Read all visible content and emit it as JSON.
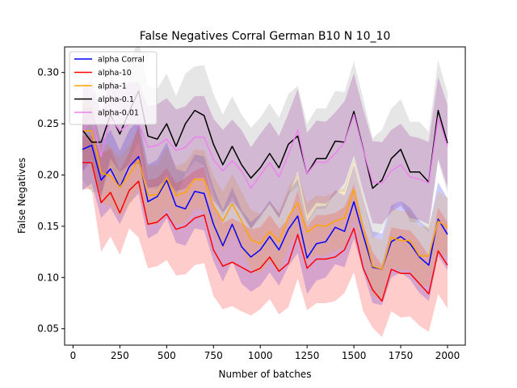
{
  "chart_data": {
    "type": "line",
    "title": "False Negatives Corral German B10 N 10_10",
    "xlabel": "Number of batches",
    "ylabel": "False Negatives",
    "xlim": [
      -45,
      2095
    ],
    "ylim": [
      0.034,
      0.325
    ],
    "x_ticks": [
      0,
      250,
      500,
      750,
      1000,
      1250,
      1500,
      1750,
      2000
    ],
    "y_ticks": [
      0.05,
      0.1,
      0.15,
      0.2,
      0.25,
      0.3
    ],
    "y_tick_labels": [
      "0.05",
      "0.10",
      "0.15",
      "0.20",
      "0.25",
      "0.30"
    ],
    "grid": false,
    "legend_position": "top-left",
    "x": [
      50,
      100,
      150,
      200,
      250,
      300,
      350,
      400,
      450,
      500,
      550,
      600,
      650,
      700,
      750,
      800,
      850,
      900,
      950,
      1000,
      1050,
      1100,
      1150,
      1200,
      1250,
      1300,
      1350,
      1400,
      1450,
      1500,
      1550,
      1600,
      1650,
      1700,
      1750,
      1800,
      1850,
      1900,
      1950,
      2000
    ],
    "series": [
      {
        "name": "alpha Corral",
        "color": "#0000ff",
        "band_color": "#0000ff",
        "values": [
          0.225,
          0.229,
          0.195,
          0.206,
          0.188,
          0.208,
          0.218,
          0.174,
          0.179,
          0.195,
          0.17,
          0.167,
          0.184,
          0.182,
          0.152,
          0.131,
          0.152,
          0.13,
          0.12,
          0.127,
          0.14,
          0.127,
          0.147,
          0.16,
          0.119,
          0.133,
          0.135,
          0.149,
          0.145,
          0.174,
          0.141,
          0.11,
          0.108,
          0.135,
          0.14,
          0.133,
          0.12,
          0.112,
          0.157,
          0.142
        ],
        "lower": [
          0.185,
          0.192,
          0.158,
          0.168,
          0.152,
          0.172,
          0.182,
          0.138,
          0.143,
          0.158,
          0.134,
          0.131,
          0.148,
          0.146,
          0.116,
          0.096,
          0.116,
          0.094,
          0.086,
          0.092,
          0.105,
          0.092,
          0.111,
          0.124,
          0.084,
          0.097,
          0.1,
          0.113,
          0.11,
          0.138,
          0.106,
          0.075,
          0.073,
          0.1,
          0.105,
          0.098,
          0.085,
          0.077,
          0.121,
          0.107
        ],
        "upper": [
          0.265,
          0.266,
          0.232,
          0.244,
          0.224,
          0.244,
          0.254,
          0.21,
          0.215,
          0.232,
          0.206,
          0.203,
          0.22,
          0.218,
          0.188,
          0.166,
          0.188,
          0.166,
          0.154,
          0.162,
          0.175,
          0.162,
          0.183,
          0.196,
          0.154,
          0.169,
          0.17,
          0.185,
          0.18,
          0.21,
          0.176,
          0.145,
          0.143,
          0.17,
          0.175,
          0.168,
          0.155,
          0.147,
          0.193,
          0.177
        ]
      },
      {
        "name": "alpha-10",
        "color": "#ff0000",
        "band_color": "#ff0000",
        "values": [
          0.212,
          0.212,
          0.173,
          0.183,
          0.163,
          0.185,
          0.194,
          0.152,
          0.154,
          0.162,
          0.147,
          0.15,
          0.158,
          0.161,
          0.127,
          0.111,
          0.115,
          0.11,
          0.105,
          0.109,
          0.12,
          0.106,
          0.114,
          0.142,
          0.109,
          0.118,
          0.118,
          0.12,
          0.127,
          0.148,
          0.109,
          0.088,
          0.077,
          0.108,
          0.104,
          0.104,
          0.094,
          0.084,
          0.126,
          0.112
        ],
        "lower": [
          0.186,
          0.186,
          0.125,
          0.14,
          0.122,
          0.148,
          0.139,
          0.109,
          0.111,
          0.117,
          0.102,
          0.103,
          0.112,
          0.114,
          0.082,
          0.069,
          0.072,
          0.067,
          0.063,
          0.069,
          0.079,
          0.064,
          0.071,
          0.099,
          0.068,
          0.075,
          0.075,
          0.077,
          0.085,
          0.105,
          0.067,
          0.051,
          0.042,
          0.067,
          0.061,
          0.062,
          0.053,
          0.047,
          0.084,
          0.07
        ],
        "upper": [
          0.238,
          0.238,
          0.221,
          0.226,
          0.204,
          0.222,
          0.249,
          0.195,
          0.197,
          0.207,
          0.192,
          0.197,
          0.204,
          0.208,
          0.172,
          0.153,
          0.158,
          0.153,
          0.147,
          0.149,
          0.161,
          0.148,
          0.157,
          0.185,
          0.15,
          0.161,
          0.161,
          0.163,
          0.169,
          0.191,
          0.151,
          0.125,
          0.112,
          0.149,
          0.147,
          0.146,
          0.135,
          0.121,
          0.168,
          0.154
        ]
      },
      {
        "name": "alpha-1",
        "color": "#ffa500",
        "band_color": "#ffa500",
        "values": [
          0.243,
          0.243,
          0.202,
          0.199,
          0.188,
          0.2,
          0.215,
          0.18,
          0.181,
          0.197,
          0.18,
          0.183,
          0.196,
          0.195,
          0.17,
          0.155,
          0.172,
          0.155,
          0.137,
          0.133,
          0.145,
          0.135,
          0.159,
          0.173,
          0.144,
          0.151,
          0.15,
          0.155,
          0.158,
          0.186,
          0.149,
          0.111,
          0.108,
          0.139,
          0.136,
          0.136,
          0.121,
          0.121,
          0.155,
          0.149
        ],
        "lower": [
          0.214,
          0.214,
          0.173,
          0.17,
          0.159,
          0.171,
          0.186,
          0.151,
          0.152,
          0.168,
          0.151,
          0.154,
          0.167,
          0.166,
          0.141,
          0.126,
          0.143,
          0.126,
          0.108,
          0.104,
          0.116,
          0.106,
          0.13,
          0.144,
          0.115,
          0.122,
          0.121,
          0.126,
          0.129,
          0.157,
          0.12,
          0.082,
          0.079,
          0.11,
          0.107,
          0.107,
          0.092,
          0.092,
          0.126,
          0.12
        ],
        "upper": [
          0.272,
          0.272,
          0.231,
          0.228,
          0.217,
          0.229,
          0.244,
          0.209,
          0.21,
          0.226,
          0.209,
          0.212,
          0.225,
          0.224,
          0.199,
          0.184,
          0.201,
          0.184,
          0.166,
          0.162,
          0.174,
          0.164,
          0.188,
          0.202,
          0.173,
          0.18,
          0.179,
          0.184,
          0.187,
          0.215,
          0.178,
          0.14,
          0.137,
          0.168,
          0.165,
          0.165,
          0.15,
          0.15,
          0.184,
          0.178
        ]
      },
      {
        "name": "alpha-0.1",
        "color": "#000000",
        "band_color": "#808080",
        "values": [
          0.244,
          0.232,
          0.232,
          0.259,
          0.24,
          0.262,
          0.282,
          0.238,
          0.235,
          0.25,
          0.228,
          0.25,
          0.263,
          0.258,
          0.23,
          0.21,
          0.228,
          0.21,
          0.197,
          0.207,
          0.221,
          0.207,
          0.23,
          0.238,
          0.201,
          0.216,
          0.216,
          0.233,
          0.232,
          0.262,
          0.225,
          0.187,
          0.195,
          0.216,
          0.225,
          0.203,
          0.203,
          0.193,
          0.263,
          0.231
        ],
        "lower": [
          0.195,
          0.183,
          0.183,
          0.21,
          0.191,
          0.213,
          0.233,
          0.189,
          0.186,
          0.201,
          0.179,
          0.201,
          0.214,
          0.209,
          0.181,
          0.161,
          0.179,
          0.161,
          0.148,
          0.158,
          0.172,
          0.158,
          0.181,
          0.189,
          0.152,
          0.167,
          0.167,
          0.184,
          0.183,
          0.213,
          0.176,
          0.138,
          0.146,
          0.167,
          0.176,
          0.154,
          0.154,
          0.144,
          0.214,
          0.182
        ],
        "upper": [
          0.293,
          0.281,
          0.281,
          0.308,
          0.289,
          0.311,
          0.331,
          0.287,
          0.284,
          0.299,
          0.277,
          0.299,
          0.306,
          0.307,
          0.279,
          0.259,
          0.277,
          0.259,
          0.246,
          0.256,
          0.27,
          0.256,
          0.279,
          0.287,
          0.25,
          0.265,
          0.265,
          0.282,
          0.281,
          0.311,
          0.274,
          0.236,
          0.244,
          0.265,
          0.274,
          0.252,
          0.252,
          0.242,
          0.312,
          0.28
        ]
      },
      {
        "name": "alpha-0.01",
        "color": "#ee82ee",
        "band_color": "#800080",
        "values": [
          0.243,
          0.255,
          0.218,
          0.256,
          0.243,
          0.25,
          0.251,
          0.227,
          0.229,
          0.235,
          0.224,
          0.227,
          0.237,
          0.237,
          0.215,
          0.204,
          0.214,
          0.204,
          0.187,
          0.2,
          0.212,
          0.198,
          0.22,
          0.244,
          0.201,
          0.213,
          0.212,
          0.221,
          0.232,
          0.259,
          0.224,
          0.193,
          0.192,
          0.204,
          0.21,
          0.198,
          0.196,
          0.192,
          0.256,
          0.228
        ],
        "lower": [
          0.203,
          0.215,
          0.178,
          0.216,
          0.203,
          0.21,
          0.211,
          0.187,
          0.189,
          0.195,
          0.184,
          0.187,
          0.197,
          0.197,
          0.175,
          0.164,
          0.174,
          0.164,
          0.147,
          0.16,
          0.172,
          0.158,
          0.18,
          0.204,
          0.161,
          0.173,
          0.172,
          0.181,
          0.192,
          0.219,
          0.184,
          0.153,
          0.152,
          0.164,
          0.17,
          0.158,
          0.156,
          0.152,
          0.216,
          0.188
        ],
        "upper": [
          0.283,
          0.295,
          0.258,
          0.296,
          0.283,
          0.29,
          0.291,
          0.267,
          0.269,
          0.275,
          0.264,
          0.267,
          0.277,
          0.277,
          0.255,
          0.244,
          0.254,
          0.244,
          0.227,
          0.24,
          0.252,
          0.238,
          0.26,
          0.284,
          0.241,
          0.253,
          0.252,
          0.261,
          0.272,
          0.299,
          0.264,
          0.233,
          0.232,
          0.244,
          0.25,
          0.238,
          0.236,
          0.232,
          0.296,
          0.268
        ]
      }
    ]
  }
}
